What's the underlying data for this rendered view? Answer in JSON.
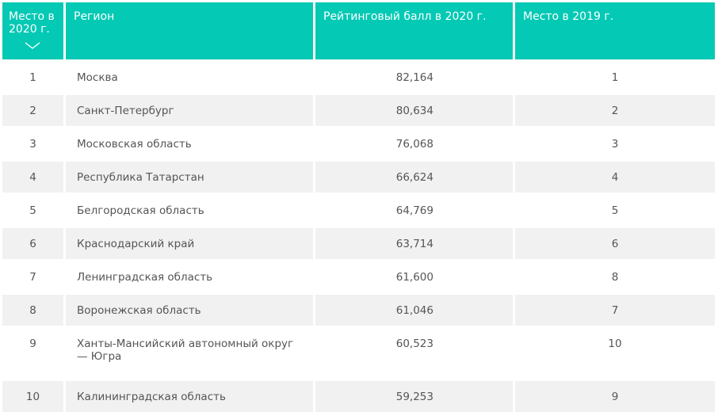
{
  "table": {
    "headers": {
      "place_2020": "Место в 2020 г.",
      "region": "Регион",
      "score_2020": "Рейтинговый балл в 2020 г.",
      "place_2019": "Место в 2019 г."
    },
    "sort_icon": "chevron-down-icon",
    "header_color": "#04c9b4",
    "rows": [
      {
        "place": "1",
        "region": "Москва",
        "score": "82,164",
        "prev": "1"
      },
      {
        "place": "2",
        "region": "Санкт-Петербург",
        "score": "80,634",
        "prev": "2"
      },
      {
        "place": "3",
        "region": "Московская область",
        "score": "76,068",
        "prev": "3"
      },
      {
        "place": "4",
        "region": "Республика Татарстан",
        "score": "66,624",
        "prev": "4"
      },
      {
        "place": "5",
        "region": "Белгородская область",
        "score": "64,769",
        "prev": "5"
      },
      {
        "place": "6",
        "region": "Краснодарский край",
        "score": "63,714",
        "prev": "6"
      },
      {
        "place": "7",
        "region": "Ленинградская область",
        "score": "61,600",
        "prev": "8"
      },
      {
        "place": "8",
        "region": "Воронежская область",
        "score": "61,046",
        "prev": "7"
      },
      {
        "place": "9",
        "region": "Ханты-Мансийский автономный округ — Югра",
        "score": "60,523",
        "prev": "10"
      },
      {
        "place": "10",
        "region": "Калининградская область",
        "score": "59,253",
        "prev": "9"
      }
    ]
  }
}
